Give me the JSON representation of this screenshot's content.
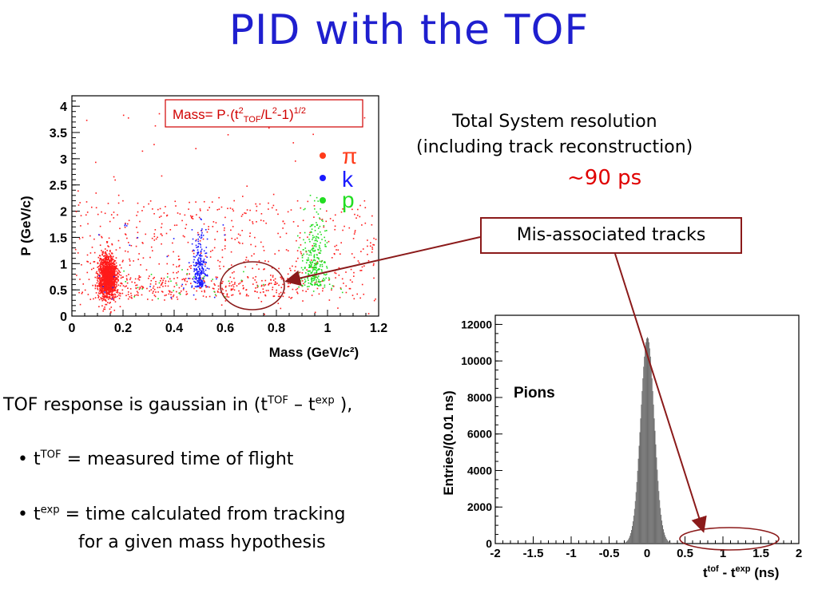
{
  "slide": {
    "title": "PID with the TOF",
    "resolution_line1": "Total System resolution",
    "resolution_line2": "(including track reconstruction)",
    "resolution_value": "~90 ps",
    "mis_associated": "Mis-associated tracks",
    "tof_response_pre": "TOF response is gaussian in (t",
    "tof_response_sup1": "TOF",
    "tof_response_mid": " – t",
    "tof_response_sup2": "exp",
    "tof_response_post": " ),",
    "bullet1_t": "t",
    "bullet1_sup": "TOF",
    "bullet1_text": " = measured time of flight",
    "bullet2_t": "t",
    "bullet2_sup": "exp",
    "bullet2_text": " = time calculated from tracking",
    "bullet2_line2": "for a given mass hypothesis",
    "bullet_char": "•"
  },
  "chart_data": [
    {
      "type": "scatter",
      "xlabel": "Mass (GeV/c²)",
      "ylabel": "P (GeV/c)",
      "xlim": [
        0,
        1.2
      ],
      "ylim": [
        0,
        4.2
      ],
      "xticks": [
        "0",
        "0.2",
        "0.4",
        "0.6",
        "0.8",
        "1",
        "1.2"
      ],
      "yticks": [
        "0",
        "0.5",
        "1",
        "1.5",
        "2",
        "2.5",
        "3",
        "3.5",
        "4"
      ],
      "formula": {
        "pre": "Mass= P·(t",
        "sup1": "2",
        "sub1": "TOF",
        "mid": "/L",
        "sup2": "2",
        "post": "-1)",
        "sup3": "1/2"
      },
      "legend_placement": "top-right",
      "series": [
        {
          "name": "π",
          "color": "#ff1a1a",
          "mass_center": 0.14,
          "p_range": [
            0.3,
            1.2
          ]
        },
        {
          "name": "k",
          "color": "#1a1aff",
          "mass_center": 0.5,
          "p_range": [
            0.5,
            1.6
          ]
        },
        {
          "name": "p",
          "color": "#22dd22",
          "mass_center": 0.95,
          "p_range": [
            0.5,
            2.4
          ]
        }
      ],
      "annotation": "mis-associated region ellipse near mass 0.7, P 0.6"
    },
    {
      "type": "bar",
      "title": "Pions",
      "xlabel_main": "t",
      "xlabel_sup1": "tof",
      "xlabel_mid": " - t",
      "xlabel_sup2": "exp",
      "xlabel_unit": " (ns)",
      "ylabel": "Entries/(0.01 ns)",
      "xlim": [
        -2,
        2
      ],
      "ylim": [
        0,
        12500
      ],
      "xticks": [
        "-2",
        "-1.5",
        "-1",
        "-0.5",
        "0",
        "0.5",
        "1",
        "1.5",
        "2"
      ],
      "yticks": [
        "0",
        "2000",
        "4000",
        "6000",
        "8000",
        "10000",
        "12000"
      ],
      "peak": {
        "x": 0.0,
        "height": 11300,
        "sigma": 0.09
      },
      "bar_color": "#6e6e6e",
      "annotation": "mis-associated tail ellipse from 0.5 to 1.7 ns"
    }
  ],
  "colors": {
    "title": "#1f1fcf",
    "accent_red": "#e00000",
    "box_border": "#8b1a1a"
  }
}
